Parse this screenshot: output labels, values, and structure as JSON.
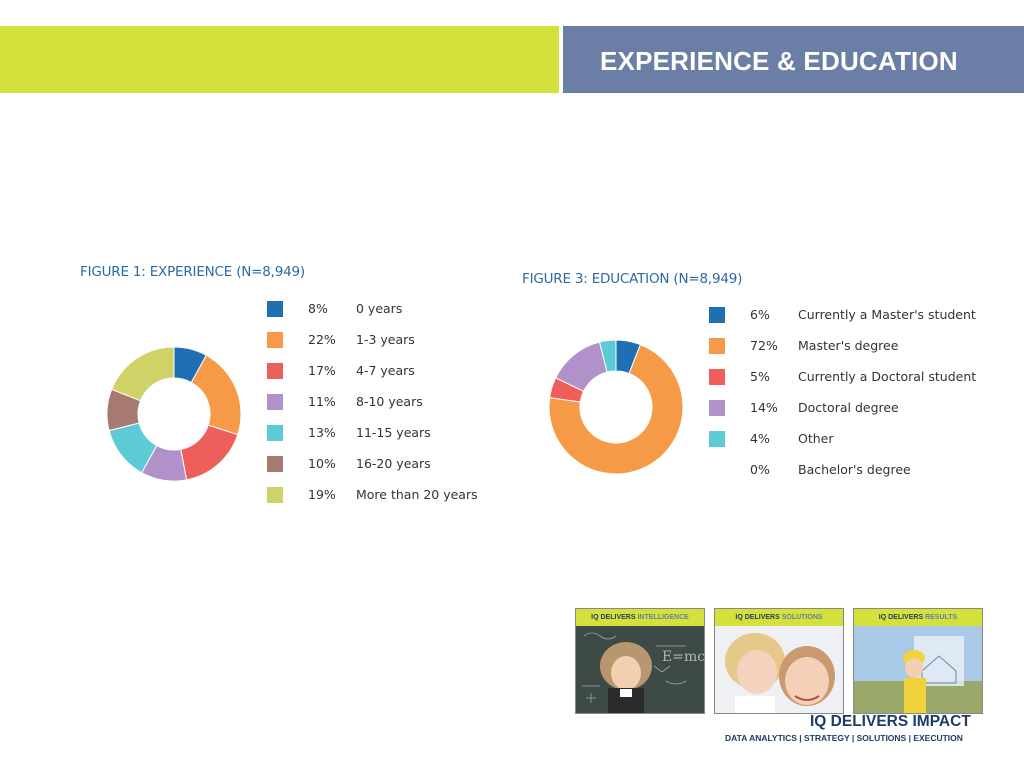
{
  "header": {
    "title": "EXPERIENCE & EDUCATION",
    "colors": {
      "left_band": "#d4e03c",
      "right_band": "#6a7ea6"
    }
  },
  "chart_data": [
    {
      "type": "pie",
      "variant": "donut",
      "title": "FIGURE 1: EXPERIENCE (N=8,949)",
      "series": [
        {
          "label": "0 years",
          "pct_label": "8%",
          "value": 8,
          "color": "#1f6fb5"
        },
        {
          "label": "1-3 years",
          "pct_label": "22%",
          "value": 22,
          "color": "#f79a48"
        },
        {
          "label": "4-7 years",
          "pct_label": "17%",
          "value": 17,
          "color": "#ee5f5b"
        },
        {
          "label": "8-10 years",
          "pct_label": "11%",
          "value": 11,
          "color": "#b191c9"
        },
        {
          "label": "11-15 years",
          "pct_label": "13%",
          "value": 13,
          "color": "#5ccbd6"
        },
        {
          "label": "16-20 years",
          "pct_label": "10%",
          "value": 10,
          "color": "#a67a71"
        },
        {
          "label": "More than 20 years",
          "pct_label": "19%",
          "value": 19,
          "color": "#cfd266"
        }
      ],
      "legend": "right"
    },
    {
      "type": "pie",
      "variant": "donut",
      "title": "FIGURE 3: EDUCATION (N=8,949)",
      "series": [
        {
          "label": "Currently a Master's student",
          "pct_label": "6%",
          "value": 6,
          "color": "#1f6fb5"
        },
        {
          "label": "Master's degree",
          "pct_label": "72%",
          "value": 72,
          "color": "#f79a48"
        },
        {
          "label": "Currently a Doctoral student",
          "pct_label": "5%",
          "value": 5,
          "color": "#ee5f5b"
        },
        {
          "label": "Doctoral degree",
          "pct_label": "14%",
          "value": 14,
          "color": "#b191c9"
        },
        {
          "label": "Other",
          "pct_label": "4%",
          "value": 4,
          "color": "#5ccbd6"
        },
        {
          "label": "Bachelor's degree",
          "pct_label": "0%",
          "value": 0,
          "color": null
        }
      ],
      "legend": "right"
    }
  ],
  "footer": {
    "panels": [
      {
        "prefix": "IQ DELIVERS",
        "highlight": "INTELLIGENCE"
      },
      {
        "prefix": "IQ DELIVERS",
        "highlight": "SOLUTIONS"
      },
      {
        "prefix": "IQ DELIVERS",
        "highlight": "RESULTS"
      }
    ],
    "brand": "IQ DELIVERS IMPACT",
    "tagline": "DATA ANALYTICS  |  STRATEGY  |  SOLUTIONS  |  EXECUTION"
  }
}
